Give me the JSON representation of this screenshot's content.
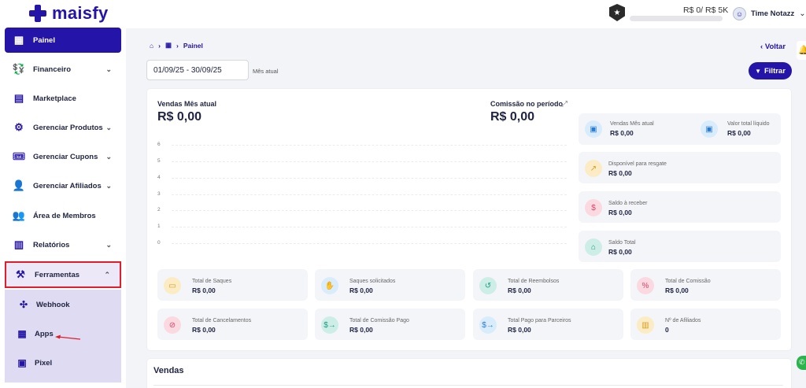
{
  "header": {
    "brand": "maisfy",
    "goal_text": "R$ 0/ R$ 5K",
    "goal_progress": 0,
    "user_name": "Time Notazz"
  },
  "sidebar": {
    "items": [
      {
        "label": "Painel",
        "icon": "grid-icon",
        "active": true
      },
      {
        "label": "Financeiro",
        "icon": "money-icon",
        "caret": "down"
      },
      {
        "label": "Marketplace",
        "icon": "store-icon"
      },
      {
        "label": "Gerenciar Produtos",
        "icon": "gear-icon",
        "caret": "down"
      },
      {
        "label": "Gerenciar Cupons",
        "icon": "ticket-icon",
        "caret": "down"
      },
      {
        "label": "Gerenciar Afiliados",
        "icon": "affiliate-icon",
        "caret": "down"
      },
      {
        "label": "Área de Membros",
        "icon": "members-icon"
      },
      {
        "label": "Relatórios",
        "icon": "report-icon",
        "caret": "down"
      },
      {
        "label": "Ferramentas",
        "icon": "tools-icon",
        "caret": "up",
        "highlighted": true
      }
    ],
    "submenu": [
      {
        "label": "Webhook",
        "icon": "webhook-icon"
      },
      {
        "label": "Apps",
        "icon": "apps-icon"
      },
      {
        "label": "Pixel",
        "icon": "pixel-icon"
      }
    ]
  },
  "breadcrumb": {
    "current": "Painel"
  },
  "back_label": "Voltar",
  "filter": {
    "date_range": "01/09/25 - 30/09/25",
    "period_label": "Mês atual",
    "button_label": "Filtrar"
  },
  "summary": {
    "sales_label": "Vendas Mês atual",
    "sales_value": "R$ 0,00",
    "commission_label": "Comissão no período",
    "commission_value": "R$ 0,00"
  },
  "chart_data": {
    "type": "line",
    "y_ticks": [
      "6",
      "5",
      "4",
      "3",
      "2",
      "1",
      "0"
    ],
    "ylim": [
      0,
      6
    ],
    "grid": true
  },
  "right_stats": [
    {
      "label": "Vendas Mês atual",
      "value": "R$ 0,00",
      "icon": "wallet-icon",
      "color": "#2b7bd0"
    },
    {
      "label": "Valor total líquido",
      "value": "R$ 0,00",
      "icon": "wallet-icon",
      "color": "#2b7bd0"
    },
    {
      "label": "Disponível para resgate",
      "value": "R$ 0,00",
      "icon": "trend-icon",
      "color": "#d99b19"
    },
    {
      "label": "Saldo à receber",
      "value": "R$ 0,00",
      "icon": "receipt-icon",
      "color": "#d6456a"
    },
    {
      "label": "Saldo Total",
      "value": "R$ 0,00",
      "icon": "bank-icon",
      "color": "#1a9a80"
    }
  ],
  "bottom_stats": [
    {
      "label": "Total de Saques",
      "value": "R$ 0,00",
      "icon": "cash-icon",
      "color": "#d99b19"
    },
    {
      "label": "Saques solicitados",
      "value": "R$ 0,00",
      "icon": "hand-money-icon",
      "color": "#2b7bd0"
    },
    {
      "label": "Total de Reembolsos",
      "value": "R$ 0,00",
      "icon": "refund-icon",
      "color": "#1a9a80"
    },
    {
      "label": "Total de Comissão",
      "value": "R$ 0,00",
      "icon": "commission-icon",
      "color": "#d6456a"
    },
    {
      "label": "Total de Cancelamentos",
      "value": "R$ 0,00",
      "icon": "cancel-icon",
      "color": "#d6456a"
    },
    {
      "label": "Total de Comissão Pago",
      "value": "R$ 0,00",
      "icon": "dollar-arrow-icon",
      "color": "#1a9a80"
    },
    {
      "label": "Total Pago para Parceiros",
      "value": "R$ 0,00",
      "icon": "dollar-arrow-icon",
      "color": "#2b7bd0"
    },
    {
      "label": "Nº de Afiliados",
      "value": "0",
      "icon": "affiliates-count-icon",
      "color": "#d99b19"
    }
  ],
  "sales_section": {
    "title": "Vendas"
  }
}
